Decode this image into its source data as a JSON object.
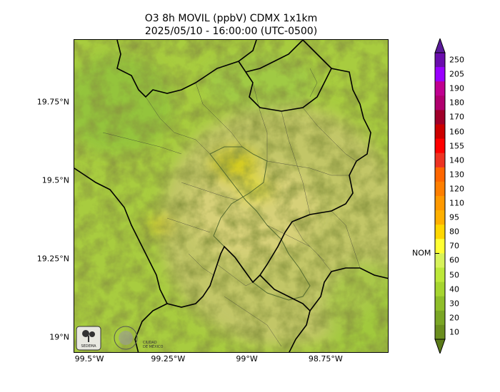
{
  "title": {
    "line1": "O3 8h MOVIL (ppbV) CDMX 1x1km",
    "line2": "2025/05/10 - 16:00:00 (UTC-0500)"
  },
  "map": {
    "lat_ticks": [
      {
        "value": 19.75,
        "label": "19.75°N"
      },
      {
        "value": 19.5,
        "label": "19.5°N"
      },
      {
        "value": 19.25,
        "label": "19.25°N"
      },
      {
        "value": 19.0,
        "label": "19°N"
      }
    ],
    "lon_ticks": [
      {
        "value": -99.5,
        "label": "99.5°W"
      },
      {
        "value": -99.25,
        "label": "99.25°W"
      },
      {
        "value": -99.0,
        "label": "99°W"
      },
      {
        "value": -98.75,
        "label": "98.75°W"
      }
    ],
    "extent": {
      "lon_min": -99.55,
      "lon_max": -98.55,
      "lat_min": 18.95,
      "lat_max": 19.95
    },
    "logos": [
      {
        "text": "SEDEMA",
        "icon": "tree-logo-icon"
      },
      {
        "text": "GOBIERNO DE LA CIUDAD DE MÉXICO",
        "icon": "seal-logo-icon"
      }
    ]
  },
  "colorbar": {
    "levels": [
      "10",
      "20",
      "30",
      "40",
      "50",
      "60",
      "70",
      "80",
      "95",
      "110",
      "120",
      "130",
      "140",
      "155",
      "160",
      "170",
      "180",
      "190",
      "205",
      "250"
    ],
    "colors": [
      "#6b8e1f",
      "#7aa625",
      "#8fbe2a",
      "#a6d530",
      "#bde83a",
      "#d7f25a",
      "#ffff33",
      "#ffd700",
      "#ffb000",
      "#ff9900",
      "#ff7f00",
      "#ff6600",
      "#ee3322",
      "#ff0000",
      "#cc0000",
      "#a0002a",
      "#b0006e",
      "#c00090",
      "#9900ff",
      "#6a0dad"
    ],
    "upper_extend_color": "#5a1a9a",
    "lower_extend_color": "#5a7a18",
    "nom_label": "NOM",
    "nom_value": 70
  }
}
